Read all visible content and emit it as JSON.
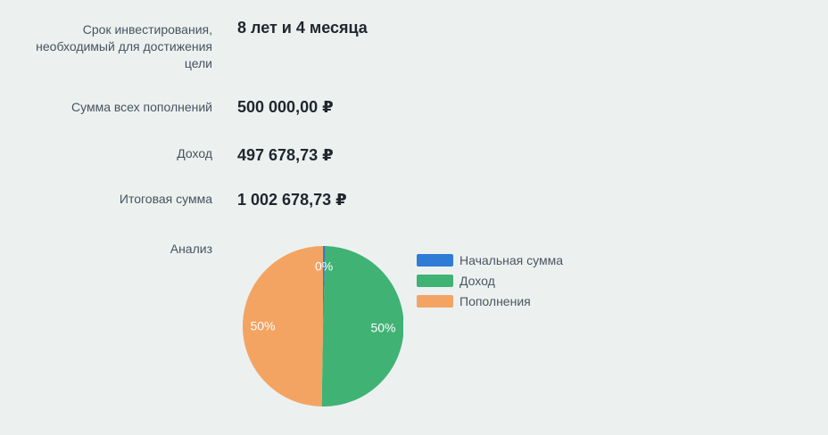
{
  "colors": {
    "background": "#ecf1f0",
    "label_text": "#47535e",
    "value_text": "#20262e",
    "legend_text": "#4b5560",
    "pct_label_text": "#ffffff"
  },
  "results": {
    "rows": [
      {
        "label_lines": [
          "Срок инвестирования,",
          "необходимый для достижения",
          "цели"
        ],
        "value": "8 лет и 4 месяца"
      },
      {
        "label_lines": [
          "Сумма всех пополнений"
        ],
        "value": "500 000,00 ₽"
      },
      {
        "label_lines": [
          "Доход"
        ],
        "value": "497 678,73 ₽"
      },
      {
        "label_lines": [
          "Итоговая сумма"
        ],
        "value": "1 002 678,73 ₽"
      }
    ],
    "analysis_label": "Анализ"
  },
  "chart_data": {
    "type": "pie",
    "title": "Анализ",
    "slices": [
      {
        "label": "Начальная сумма",
        "pct": 0.5,
        "display": "0%",
        "color": "#2e7cd6"
      },
      {
        "label": "Доход",
        "pct": 49.75,
        "display": "50%",
        "color": "#40b274"
      },
      {
        "label": "Пополнения",
        "pct": 49.75,
        "display": "50%",
        "color": "#f4a462"
      }
    ],
    "legend_position": "right",
    "start_angle": "top",
    "direction": "clockwise",
    "radius_px": 90,
    "label_radius_ratio": 0.75
  }
}
